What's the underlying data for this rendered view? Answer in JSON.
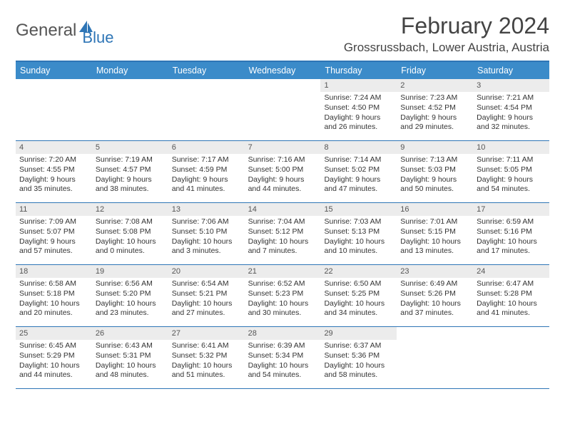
{
  "logo": {
    "text1": "General",
    "text2": "Blue"
  },
  "title": "February 2024",
  "location": "Grossrussbach, Lower Austria, Austria",
  "colors": {
    "header_bar": "#3b8bc9",
    "border": "#2e75b6",
    "daynum_bg": "#ececec",
    "text": "#333333"
  },
  "weekdays": [
    "Sunday",
    "Monday",
    "Tuesday",
    "Wednesday",
    "Thursday",
    "Friday",
    "Saturday"
  ],
  "weeks": [
    [
      null,
      null,
      null,
      null,
      {
        "n": "1",
        "sr": "Sunrise: 7:24 AM",
        "ss": "Sunset: 4:50 PM",
        "d1": "Daylight: 9 hours",
        "d2": "and 26 minutes."
      },
      {
        "n": "2",
        "sr": "Sunrise: 7:23 AM",
        "ss": "Sunset: 4:52 PM",
        "d1": "Daylight: 9 hours",
        "d2": "and 29 minutes."
      },
      {
        "n": "3",
        "sr": "Sunrise: 7:21 AM",
        "ss": "Sunset: 4:54 PM",
        "d1": "Daylight: 9 hours",
        "d2": "and 32 minutes."
      }
    ],
    [
      {
        "n": "4",
        "sr": "Sunrise: 7:20 AM",
        "ss": "Sunset: 4:55 PM",
        "d1": "Daylight: 9 hours",
        "d2": "and 35 minutes."
      },
      {
        "n": "5",
        "sr": "Sunrise: 7:19 AM",
        "ss": "Sunset: 4:57 PM",
        "d1": "Daylight: 9 hours",
        "d2": "and 38 minutes."
      },
      {
        "n": "6",
        "sr": "Sunrise: 7:17 AM",
        "ss": "Sunset: 4:59 PM",
        "d1": "Daylight: 9 hours",
        "d2": "and 41 minutes."
      },
      {
        "n": "7",
        "sr": "Sunrise: 7:16 AM",
        "ss": "Sunset: 5:00 PM",
        "d1": "Daylight: 9 hours",
        "d2": "and 44 minutes."
      },
      {
        "n": "8",
        "sr": "Sunrise: 7:14 AM",
        "ss": "Sunset: 5:02 PM",
        "d1": "Daylight: 9 hours",
        "d2": "and 47 minutes."
      },
      {
        "n": "9",
        "sr": "Sunrise: 7:13 AM",
        "ss": "Sunset: 5:03 PM",
        "d1": "Daylight: 9 hours",
        "d2": "and 50 minutes."
      },
      {
        "n": "10",
        "sr": "Sunrise: 7:11 AM",
        "ss": "Sunset: 5:05 PM",
        "d1": "Daylight: 9 hours",
        "d2": "and 54 minutes."
      }
    ],
    [
      {
        "n": "11",
        "sr": "Sunrise: 7:09 AM",
        "ss": "Sunset: 5:07 PM",
        "d1": "Daylight: 9 hours",
        "d2": "and 57 minutes."
      },
      {
        "n": "12",
        "sr": "Sunrise: 7:08 AM",
        "ss": "Sunset: 5:08 PM",
        "d1": "Daylight: 10 hours",
        "d2": "and 0 minutes."
      },
      {
        "n": "13",
        "sr": "Sunrise: 7:06 AM",
        "ss": "Sunset: 5:10 PM",
        "d1": "Daylight: 10 hours",
        "d2": "and 3 minutes."
      },
      {
        "n": "14",
        "sr": "Sunrise: 7:04 AM",
        "ss": "Sunset: 5:12 PM",
        "d1": "Daylight: 10 hours",
        "d2": "and 7 minutes."
      },
      {
        "n": "15",
        "sr": "Sunrise: 7:03 AM",
        "ss": "Sunset: 5:13 PM",
        "d1": "Daylight: 10 hours",
        "d2": "and 10 minutes."
      },
      {
        "n": "16",
        "sr": "Sunrise: 7:01 AM",
        "ss": "Sunset: 5:15 PM",
        "d1": "Daylight: 10 hours",
        "d2": "and 13 minutes."
      },
      {
        "n": "17",
        "sr": "Sunrise: 6:59 AM",
        "ss": "Sunset: 5:16 PM",
        "d1": "Daylight: 10 hours",
        "d2": "and 17 minutes."
      }
    ],
    [
      {
        "n": "18",
        "sr": "Sunrise: 6:58 AM",
        "ss": "Sunset: 5:18 PM",
        "d1": "Daylight: 10 hours",
        "d2": "and 20 minutes."
      },
      {
        "n": "19",
        "sr": "Sunrise: 6:56 AM",
        "ss": "Sunset: 5:20 PM",
        "d1": "Daylight: 10 hours",
        "d2": "and 23 minutes."
      },
      {
        "n": "20",
        "sr": "Sunrise: 6:54 AM",
        "ss": "Sunset: 5:21 PM",
        "d1": "Daylight: 10 hours",
        "d2": "and 27 minutes."
      },
      {
        "n": "21",
        "sr": "Sunrise: 6:52 AM",
        "ss": "Sunset: 5:23 PM",
        "d1": "Daylight: 10 hours",
        "d2": "and 30 minutes."
      },
      {
        "n": "22",
        "sr": "Sunrise: 6:50 AM",
        "ss": "Sunset: 5:25 PM",
        "d1": "Daylight: 10 hours",
        "d2": "and 34 minutes."
      },
      {
        "n": "23",
        "sr": "Sunrise: 6:49 AM",
        "ss": "Sunset: 5:26 PM",
        "d1": "Daylight: 10 hours",
        "d2": "and 37 minutes."
      },
      {
        "n": "24",
        "sr": "Sunrise: 6:47 AM",
        "ss": "Sunset: 5:28 PM",
        "d1": "Daylight: 10 hours",
        "d2": "and 41 minutes."
      }
    ],
    [
      {
        "n": "25",
        "sr": "Sunrise: 6:45 AM",
        "ss": "Sunset: 5:29 PM",
        "d1": "Daylight: 10 hours",
        "d2": "and 44 minutes."
      },
      {
        "n": "26",
        "sr": "Sunrise: 6:43 AM",
        "ss": "Sunset: 5:31 PM",
        "d1": "Daylight: 10 hours",
        "d2": "and 48 minutes."
      },
      {
        "n": "27",
        "sr": "Sunrise: 6:41 AM",
        "ss": "Sunset: 5:32 PM",
        "d1": "Daylight: 10 hours",
        "d2": "and 51 minutes."
      },
      {
        "n": "28",
        "sr": "Sunrise: 6:39 AM",
        "ss": "Sunset: 5:34 PM",
        "d1": "Daylight: 10 hours",
        "d2": "and 54 minutes."
      },
      {
        "n": "29",
        "sr": "Sunrise: 6:37 AM",
        "ss": "Sunset: 5:36 PM",
        "d1": "Daylight: 10 hours",
        "d2": "and 58 minutes."
      },
      null,
      null
    ]
  ]
}
